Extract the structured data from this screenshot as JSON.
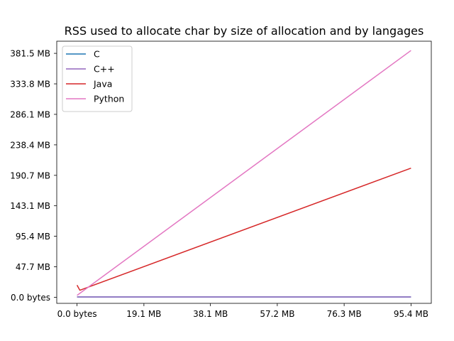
{
  "chart_data": {
    "type": "line",
    "title": "RSS used to allocate char by size of allocation and by langages",
    "xlabel": "",
    "ylabel": "",
    "x_unit": "MB",
    "y_unit": "MB",
    "x_ticks": [
      {
        "value": 0.0,
        "label": "0.0 bytes"
      },
      {
        "value": 19.1,
        "label": "19.1 MB"
      },
      {
        "value": 38.1,
        "label": "38.1 MB"
      },
      {
        "value": 57.2,
        "label": "57.2 MB"
      },
      {
        "value": 76.3,
        "label": "76.3 MB"
      },
      {
        "value": 95.4,
        "label": "95.4 MB"
      }
    ],
    "y_ticks": [
      {
        "value": 0.0,
        "label": "0.0 bytes"
      },
      {
        "value": 47.7,
        "label": "47.7 MB"
      },
      {
        "value": 95.4,
        "label": "95.4 MB"
      },
      {
        "value": 143.1,
        "label": "143.1 MB"
      },
      {
        "value": 190.7,
        "label": "190.7 MB"
      },
      {
        "value": 238.4,
        "label": "238.4 MB"
      },
      {
        "value": 286.1,
        "label": "286.1 MB"
      },
      {
        "value": 333.8,
        "label": "333.8 MB"
      },
      {
        "value": 381.5,
        "label": "381.5 MB"
      }
    ],
    "xlim": [
      -5.8,
      101.2
    ],
    "ylim": [
      -9.5,
      400.5
    ],
    "grid": false,
    "legend": "top-left",
    "series": [
      {
        "name": "C",
        "color": "#1f77b4",
        "x": [
          0,
          95.4
        ],
        "y": [
          0.5,
          0.5
        ]
      },
      {
        "name": "C++",
        "color": "#9467bd",
        "x": [
          0,
          95.4
        ],
        "y": [
          0.5,
          0.5
        ]
      },
      {
        "name": "Java",
        "color": "#d62728",
        "x": [
          0,
          0.8,
          95.4
        ],
        "y": [
          19,
          11,
          202
        ]
      },
      {
        "name": "Python",
        "color": "#e377c2",
        "x": [
          0,
          95.4
        ],
        "y": [
          3,
          386
        ]
      }
    ]
  }
}
